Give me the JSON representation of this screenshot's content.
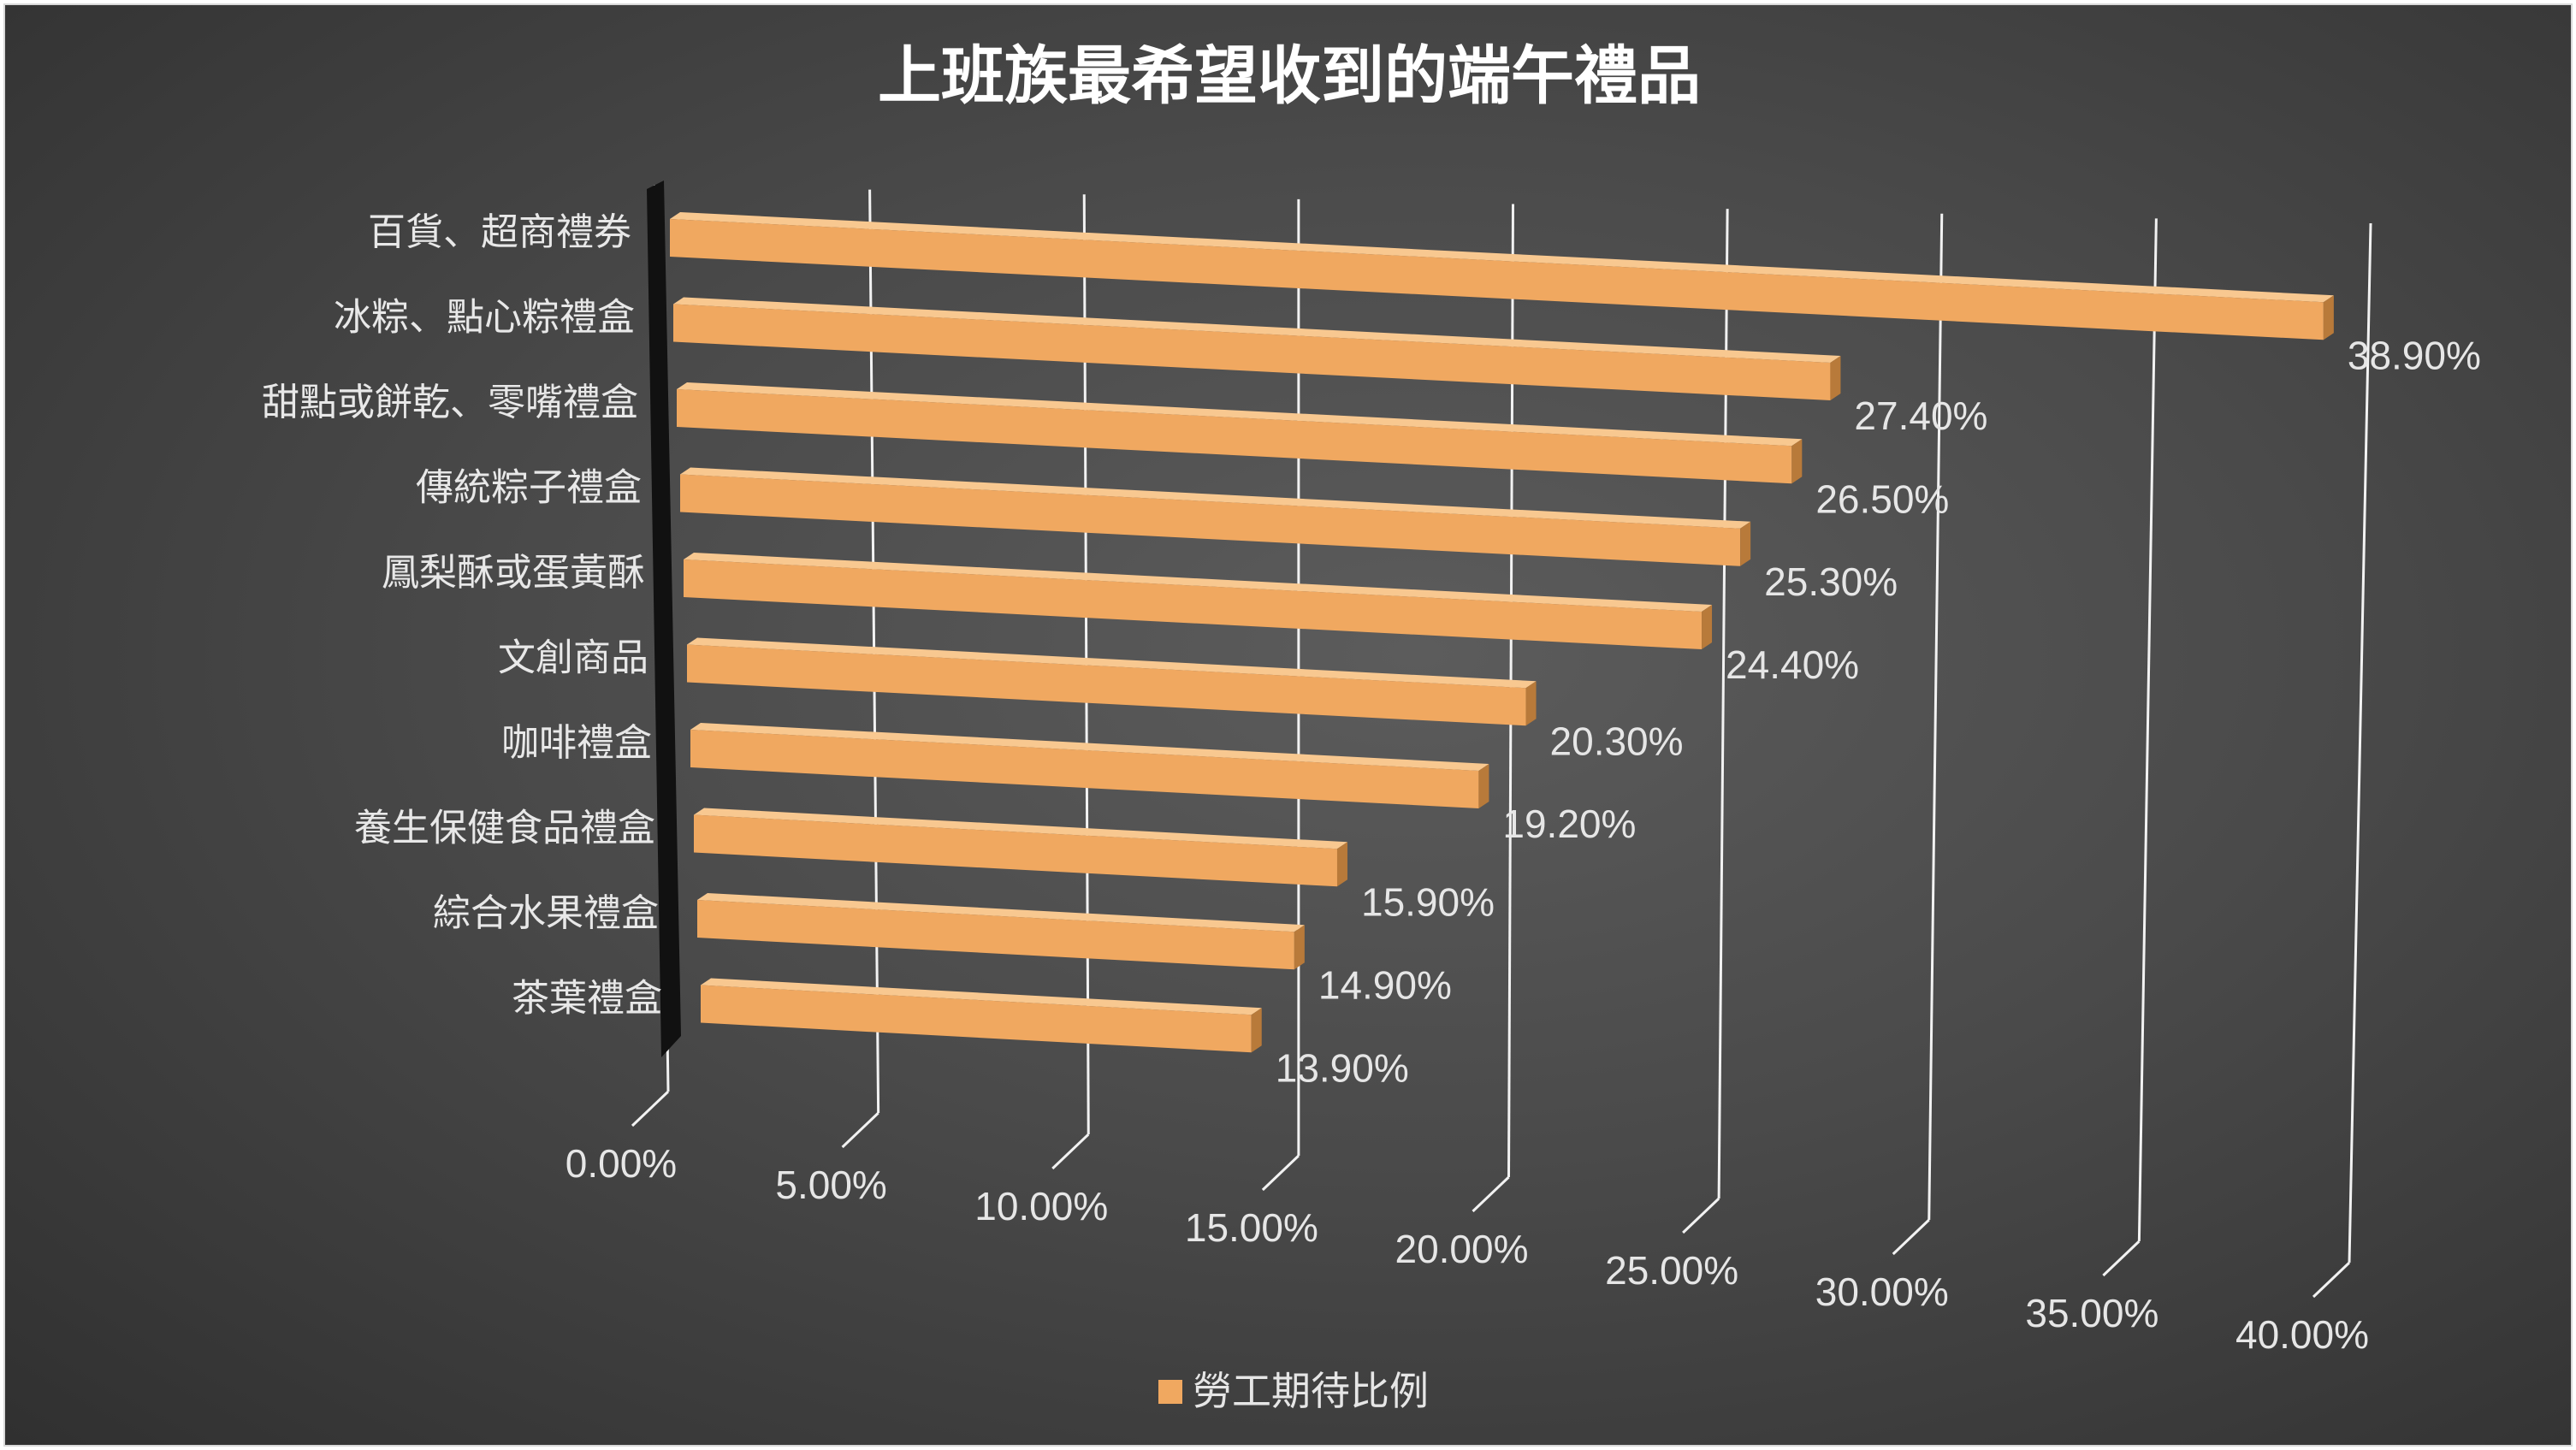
{
  "chart_data": {
    "type": "bar",
    "orientation": "horizontal",
    "perspective_3d": true,
    "title": "上班族最希望收到的端午禮品",
    "categories": [
      "百貨、超商禮券",
      "冰粽、點心粽禮盒",
      "甜點或餅乾、零嘴禮盒",
      "傳統粽子禮盒",
      "鳳梨酥或蛋黃酥",
      "文創商品",
      "咖啡禮盒",
      "養生保健食品禮盒",
      "綜合水果禮盒",
      "茶葉禮盒"
    ],
    "series": [
      {
        "name": "勞工期待比例",
        "values": [
          38.9,
          27.4,
          26.5,
          25.3,
          24.4,
          20.3,
          19.2,
          15.9,
          14.9,
          13.9
        ],
        "value_labels": [
          "38.90%",
          "27.40%",
          "26.50%",
          "25.30%",
          "24.40%",
          "20.30%",
          "19.20%",
          "15.90%",
          "14.90%",
          "13.90%"
        ]
      }
    ],
    "value_axis": {
      "range": [
        0,
        40
      ],
      "ticks": [
        0,
        5,
        10,
        15,
        20,
        25,
        30,
        35,
        40
      ],
      "tick_labels": [
        "0.00%",
        "5.00%",
        "10.00%",
        "15.00%",
        "20.00%",
        "25.00%",
        "30.00%",
        "35.00%",
        "40.00%"
      ]
    },
    "grid": true,
    "legend": "bottom",
    "bar_color": "#f0a860",
    "bar_side_color": "#b87a3a",
    "bar_top_color": "#f8c890",
    "background_color": "#474747"
  }
}
